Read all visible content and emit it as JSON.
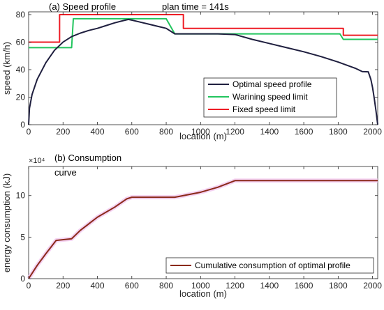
{
  "chart_data": [
    {
      "type": "line",
      "title": "(a) Speed profile",
      "annotation": "plan time = 141s",
      "xlabel": "location (m)",
      "ylabel": "speed (km/h)",
      "xlim": [
        0,
        2030
      ],
      "ylim": [
        0,
        82
      ],
      "xticks": [
        0,
        200,
        400,
        600,
        800,
        1000,
        1200,
        1400,
        1600,
        1800,
        2000
      ],
      "yticks": [
        0,
        20,
        40,
        60,
        80
      ],
      "grid": false,
      "legend_position": "bottom-right",
      "series": [
        {
          "name": "Optimal speed profile",
          "color": "#1f1f3f",
          "points": [
            [
              0,
              0
            ],
            [
              5,
              12
            ],
            [
              20,
              22
            ],
            [
              50,
              33
            ],
            [
              100,
              45
            ],
            [
              150,
              54
            ],
            [
              200,
              60
            ],
            [
              250,
              64
            ],
            [
              300,
              66.5
            ],
            [
              350,
              68.5
            ],
            [
              400,
              70
            ],
            [
              450,
              72
            ],
            [
              500,
              74
            ],
            [
              550,
              75.6
            ],
            [
              580,
              76.5
            ],
            [
              600,
              76
            ],
            [
              650,
              74.5
            ],
            [
              700,
              73
            ],
            [
              750,
              71.5
            ],
            [
              800,
              70
            ],
            [
              850,
              66
            ],
            [
              900,
              66
            ],
            [
              1000,
              66
            ],
            [
              1100,
              66
            ],
            [
              1200,
              65.5
            ],
            [
              1300,
              62
            ],
            [
              1400,
              59
            ],
            [
              1500,
              56
            ],
            [
              1600,
              53
            ],
            [
              1700,
              49.5
            ],
            [
              1800,
              45.5
            ],
            [
              1900,
              41
            ],
            [
              1940,
              38.6
            ],
            [
              1975,
              38.4
            ],
            [
              1990,
              33
            ],
            [
              2000,
              27
            ],
            [
              2010,
              19
            ],
            [
              2020,
              10
            ],
            [
              2030,
              0
            ]
          ]
        },
        {
          "name": "Warining speed limit",
          "color": "#22c55e",
          "points": [
            [
              0,
              56
            ],
            [
              250,
              56
            ],
            [
              250,
              56
            ],
            [
              260,
              77
            ],
            [
              800,
              77
            ],
            [
              850,
              66
            ],
            [
              1810,
              66
            ],
            [
              1830,
              62
            ],
            [
              2030,
              62
            ]
          ]
        },
        {
          "name": "Fixed speed limit",
          "color": "#ee1c25",
          "points": [
            [
              0,
              60
            ],
            [
              180,
              60
            ],
            [
              180,
              80
            ],
            [
              900,
              80
            ],
            [
              900,
              70
            ],
            [
              1830,
              70
            ],
            [
              1830,
              65
            ],
            [
              2030,
              65
            ]
          ]
        }
      ]
    },
    {
      "type": "line",
      "title": "(b) Consumption",
      "title_line2": "curve",
      "exponent_label": "×10⁴",
      "xlabel": "location (m)",
      "ylabel": "energy consumption (kJ)",
      "xlim": [
        0,
        2030
      ],
      "ylim": [
        0,
        13.5
      ],
      "y_multiplier": 10000,
      "xticks": [
        0,
        200,
        400,
        600,
        800,
        1000,
        1200,
        1400,
        1600,
        1800,
        2000
      ],
      "yticks": [
        0,
        5,
        10
      ],
      "grid": false,
      "legend_position": "bottom-right",
      "series": [
        {
          "name": "Cumulative consumption of optimal profile",
          "color": "#8b2a1a",
          "points": [
            [
              0,
              0
            ],
            [
              50,
              1.6
            ],
            [
              100,
              3
            ],
            [
              160,
              4.6
            ],
            [
              250,
              4.8
            ],
            [
              300,
              5.8
            ],
            [
              400,
              7.4
            ],
            [
              500,
              8.6
            ],
            [
              570,
              9.6
            ],
            [
              600,
              9.8
            ],
            [
              850,
              9.8
            ],
            [
              1000,
              10.4
            ],
            [
              1100,
              11
            ],
            [
              1200,
              11.8
            ],
            [
              2030,
              11.8
            ]
          ]
        }
      ]
    }
  ]
}
